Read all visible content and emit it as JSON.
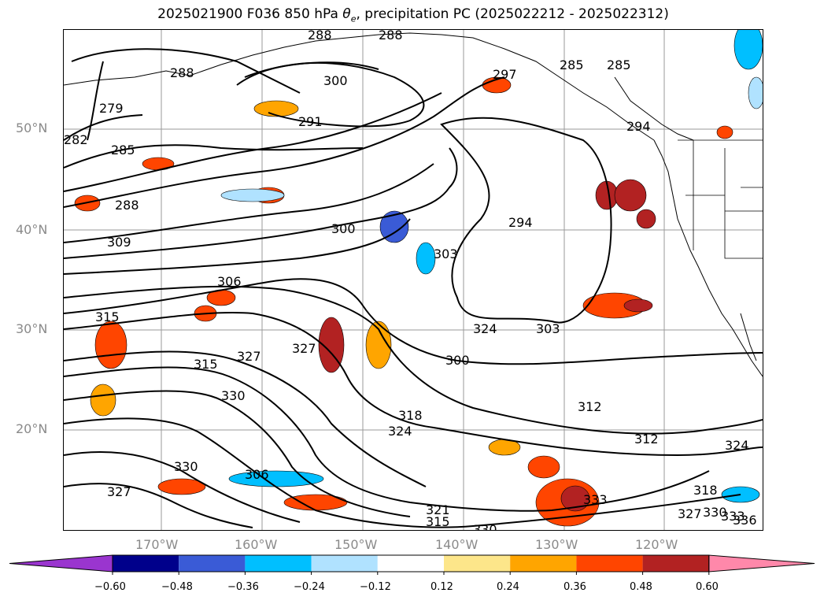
{
  "title": {
    "prefix": "2025021900 F036 850 hPa ",
    "theta_symbol": "θ",
    "theta_sub": "e",
    "suffix": ", precipitation PC (2025022212 - 2025022312)"
  },
  "lat_labels": [
    "50°N",
    "40°N",
    "30°N",
    "20°N"
  ],
  "lon_labels": [
    "170°W",
    "160°W",
    "150°W",
    "140°W",
    "130°W",
    "120°W"
  ],
  "contour_labels": [
    "288",
    "288",
    "288",
    "300",
    "279",
    "282",
    "285",
    "291",
    "297",
    "285",
    "285",
    "294",
    "288",
    "294",
    "300",
    "309",
    "303",
    "306",
    "315",
    "327",
    "324",
    "303",
    "300",
    "315",
    "327",
    "330",
    "324",
    "318",
    "312",
    "312",
    "306",
    "330",
    "327",
    "321",
    "315",
    "330",
    "333",
    "324",
    "318",
    "327",
    "330",
    "333",
    "336"
  ],
  "colorbar": {
    "ticks": [
      "−0.60",
      "−0.48",
      "−0.36",
      "−0.24",
      "−0.12",
      "0.12",
      "0.24",
      "0.36",
      "0.48",
      "0.60"
    ],
    "colors": [
      "#9a35cf",
      "#00008b",
      "#3a5bd6",
      "#00bfff",
      "#b0e2ff",
      "#ffffff",
      "#fde68a",
      "#ffa500",
      "#ff4500",
      "#b22222",
      "#ff88aa"
    ]
  }
}
